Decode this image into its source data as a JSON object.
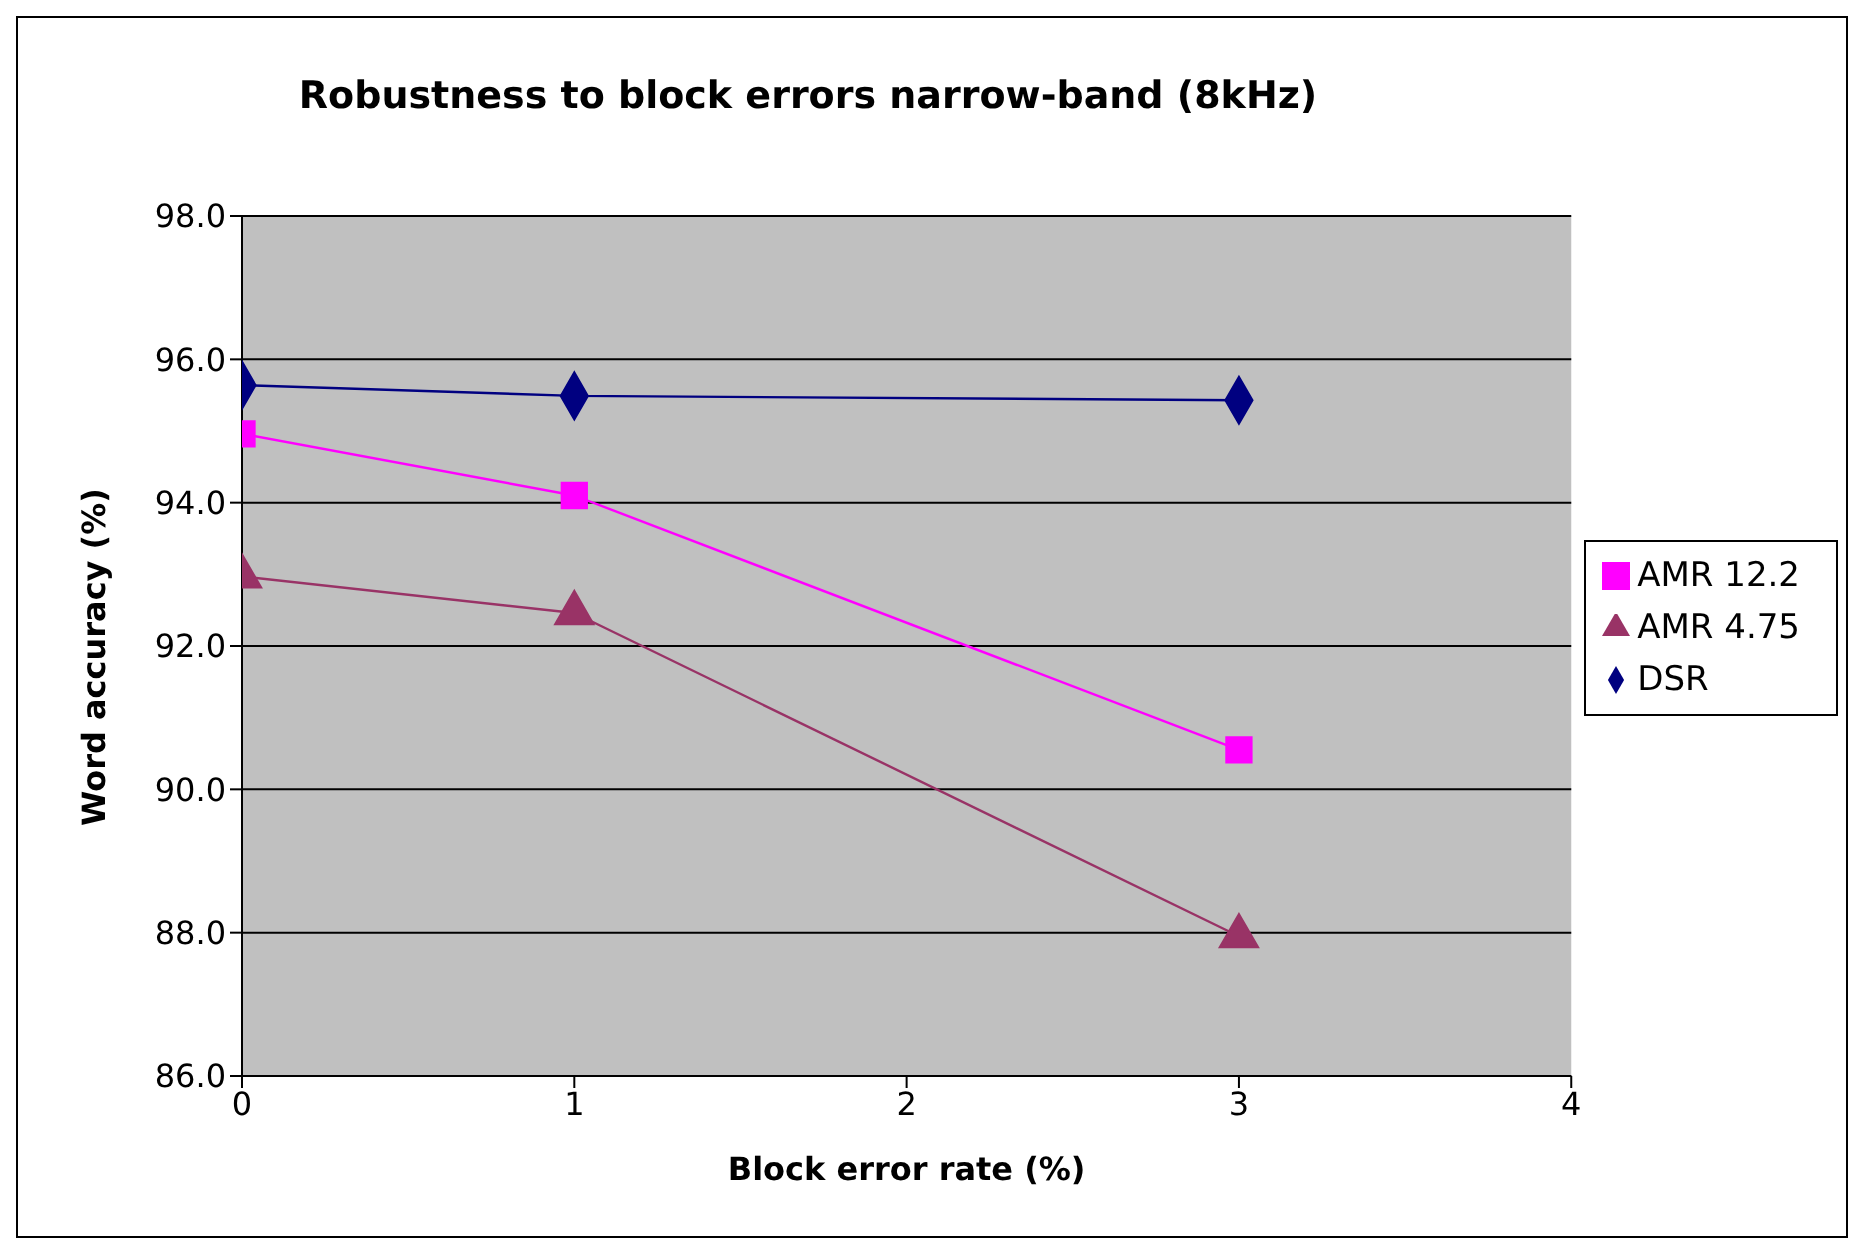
{
  "chart_data": {
    "type": "line",
    "title": "Robustness to block errors narrow-band (8kHz)",
    "xlabel": "Block error rate (%)",
    "ylabel": "Word accuracy (%)",
    "x": [
      0,
      1,
      3
    ],
    "series": [
      {
        "name": "DSR",
        "color": "#000080",
        "marker": "diamond",
        "values": [
          95.64,
          95.49,
          95.43
        ]
      },
      {
        "name": "AMR 12.2",
        "color": "#ff00ff",
        "marker": "square",
        "values": [
          94.96,
          94.1,
          90.55
        ]
      },
      {
        "name": "AMR 4.75",
        "color": "#993366",
        "marker": "triangle",
        "values": [
          92.97,
          92.46,
          87.95
        ]
      }
    ],
    "xlim": [
      0,
      4
    ],
    "xticks": [
      0,
      1,
      2,
      3,
      4
    ],
    "ylim": [
      86,
      98
    ],
    "yticks": [
      {
        "value": 86,
        "label": "86.0"
      },
      {
        "value": 88,
        "label": "88.0"
      },
      {
        "value": 90,
        "label": "90.0"
      },
      {
        "value": 92,
        "label": "92.0"
      },
      {
        "value": 94,
        "label": "94.0"
      },
      {
        "value": 96,
        "label": "96.0"
      },
      {
        "value": 98,
        "label": "98.0"
      }
    ],
    "grid": "y",
    "legend": "right",
    "line_style": "solid"
  }
}
